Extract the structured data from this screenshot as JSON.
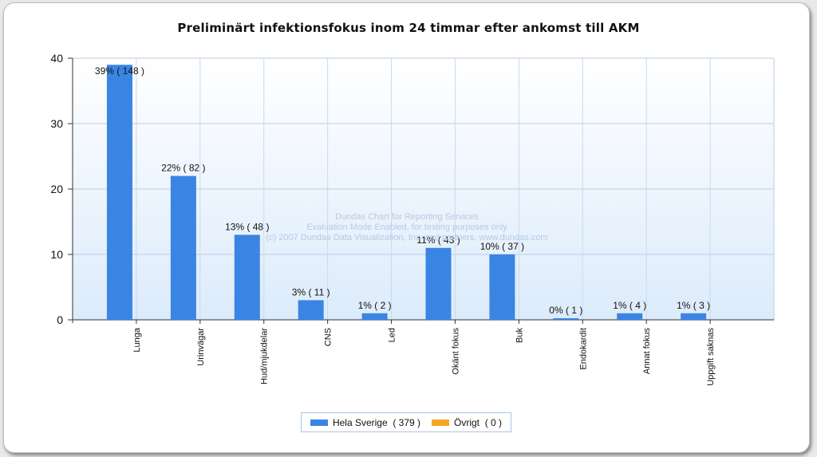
{
  "chart_data": {
    "type": "bar",
    "title": "Preliminärt infektionsfokus inom 24 timmar efter ankomst till AKM",
    "categories": [
      "Lunga",
      "Urinvägar",
      "Hud/mjukdelar",
      "CNS",
      "Led",
      "Okänt fokus",
      "Buk",
      "Endokardit",
      "Annat fokus",
      "Uppgift saknas"
    ],
    "series": [
      {
        "name": "Hela Sverige  ( 379 )",
        "color": "#3a85e3",
        "values": [
          39,
          22,
          13,
          3,
          1,
          11,
          10,
          0,
          1,
          1
        ],
        "labels": [
          "39% ( 148 )",
          "22% ( 82 )",
          "13% ( 48 )",
          "3% ( 11 )",
          "1% ( 2 )",
          "11% ( 43 )",
          "10% ( 37 )",
          "0% ( 1 )",
          "1% ( 4 )",
          "1% ( 3 )"
        ]
      },
      {
        "name": "Övrigt  ( 0 )",
        "color": "#f5a623",
        "values": [
          0,
          0,
          0,
          0,
          0,
          0,
          0,
          0,
          0,
          0
        ]
      }
    ],
    "ylim": [
      0,
      40
    ],
    "yticks": [
      0,
      10,
      20,
      30,
      40
    ],
    "grid": true,
    "legend_position": "bottom"
  },
  "watermark": [
    "Dundas Chart for Reporting Services",
    "Evaluation Mode Enabled, for testing purposes only",
    "(c) 2007 Dundas Data Visualization, Inc. and partners, www.dundas.com"
  ]
}
